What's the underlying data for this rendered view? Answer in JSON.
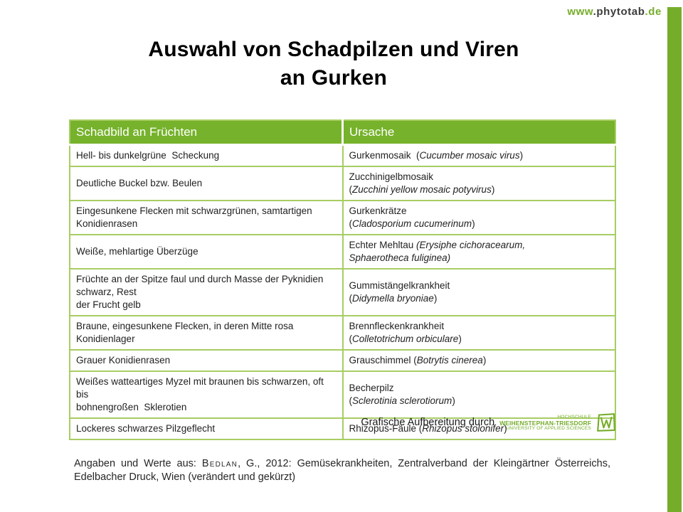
{
  "colors": {
    "accent_green": "#75ad2a",
    "table_header_green": "#76b22b",
    "table_border_light_green": "#a7cd63"
  },
  "branding_url": {
    "www": "www",
    "domain": ".phytotab",
    "tld": ".de"
  },
  "title": {
    "line1": "Auswahl von Schadpilzen und Viren",
    "line2": "an Gurken"
  },
  "table": {
    "header": {
      "col1": "Schadbild an Früchten",
      "col2": "Ursache"
    },
    "rows": [
      {
        "lines": "single",
        "symptom": "Hell- bis dunkelgrüne  Scheckung",
        "cause": [
          {
            "t": "Gurkenmosaik  ("
          },
          {
            "t": "Cucumber mosaic virus",
            "i": true
          },
          {
            "t": ")"
          }
        ]
      },
      {
        "lines": "double",
        "symptom": "Deutliche Buckel bzw. Beulen",
        "cause": [
          {
            "t": "Zucchinigelbmosaik\n("
          },
          {
            "t": "Zucchini yellow mosaic potyvirus",
            "i": true
          },
          {
            "t": ")"
          }
        ]
      },
      {
        "lines": "double",
        "symptom": "Eingesunkene Flecken mit schwarzgrünen, samtartigen Konidienrasen",
        "cause": [
          {
            "t": "Gurkenkrätze\n("
          },
          {
            "t": "Cladosporium cucumerinum",
            "i": true
          },
          {
            "t": ")"
          }
        ]
      },
      {
        "lines": "double",
        "symptom": "Weiße, mehlartige Überzüge",
        "cause": [
          {
            "t": "Echter Mehltau "
          },
          {
            "t": "(Erysiphe cichoracearum,\nSphaerotheca fuliginea)",
            "i": true
          }
        ]
      },
      {
        "lines": "double",
        "symptom": "Früchte an der Spitze faul und durch Masse der Pyknidien schwarz, Rest\nder Frucht gelb",
        "cause": [
          {
            "t": "Gummistängelkrankheit\n("
          },
          {
            "t": "Didymella bryoniae",
            "i": true
          },
          {
            "t": ")"
          }
        ]
      },
      {
        "lines": "double",
        "symptom": "Braune, eingesunkene Flecken, in deren Mitte rosa Konidienlager",
        "cause": [
          {
            "t": "Brennfleckenkrankheit\n("
          },
          {
            "t": "Colletotrichum orbiculare",
            "i": true
          },
          {
            "t": ")"
          }
        ]
      },
      {
        "lines": "single",
        "symptom": "Grauer Konidienrasen",
        "cause": [
          {
            "t": "Grauschimmel ("
          },
          {
            "t": "Botrytis cinerea",
            "i": true
          },
          {
            "t": ")"
          }
        ]
      },
      {
        "lines": "double",
        "symptom": "Weißes watteartiges Myzel mit braunen bis schwarzen, oft bis\nbohnengroßen  Sklerotien",
        "cause": [
          {
            "t": "Becherpilz\n("
          },
          {
            "t": "Sclerotinia sclerotiorum",
            "i": true
          },
          {
            "t": ")"
          }
        ]
      },
      {
        "lines": "single",
        "symptom": "Lockeres schwarzes Pilzgeflecht",
        "cause": [
          {
            "t": "Rhizopus-Fäule ("
          },
          {
            "t": "Rhizopus stolonifer",
            "i": true
          },
          {
            "t": ")"
          }
        ]
      }
    ]
  },
  "credit": {
    "label": "Grafische Aufbereitung durch",
    "logo": {
      "line1": "HOCHSCHULE",
      "line2": "WEIHENSTEPHAN-TRIESDORF",
      "line3": "UNIVERSITY OF APPLIED SCIENCES"
    }
  },
  "citation": {
    "prefix": "Angaben und Werte aus: ",
    "author": "Bedlan",
    "rest": ", G., 2012: Gemüsekrankheiten, Zentralverband der Kleingärtner Österreichs, Edelbacher Druck, Wien (verändert und gekürzt)"
  }
}
